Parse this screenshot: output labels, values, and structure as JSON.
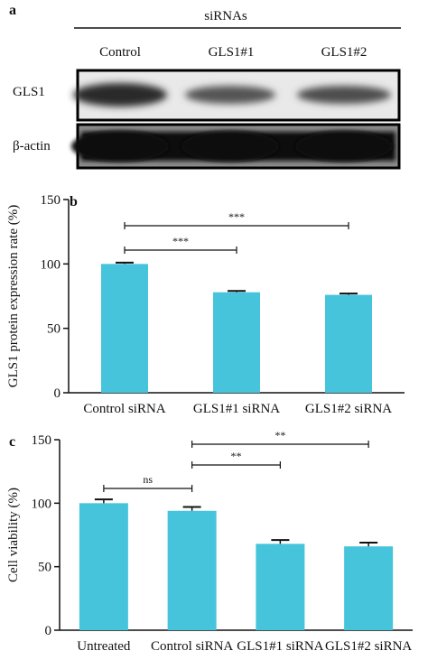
{
  "panel_a": {
    "letter": "a",
    "header": "siRNAs",
    "lanes": [
      "Control",
      "GLS1#1",
      "GLS1#2"
    ],
    "rows": [
      "GLS1",
      "β-actin"
    ]
  },
  "chart_data": [
    {
      "type": "bar",
      "panel": "b",
      "categories": [
        "Control siRNA",
        "GLS1#1 siRNA",
        "GLS1#2 siRNA"
      ],
      "values": [
        100,
        78,
        76
      ],
      "errors": [
        1,
        1,
        1
      ],
      "ylabel": "GLS1 protein expression rate (%)",
      "ylim": [
        0,
        150
      ],
      "yticks": [
        "0",
        "50",
        "100",
        "150"
      ],
      "bar_color": "#45c4dc",
      "significance": [
        {
          "from": 0,
          "to": 1,
          "label": "***"
        },
        {
          "from": 0,
          "to": 2,
          "label": "***"
        }
      ]
    },
    {
      "type": "bar",
      "panel": "c",
      "categories": [
        "Untreated",
        "Control siRNA",
        "GLS1#1 siRNA",
        "GLS1#2 siRNA"
      ],
      "values": [
        100,
        94,
        68,
        66
      ],
      "errors": [
        3,
        3,
        3,
        3
      ],
      "ylabel": "Cell viability (%)",
      "ylim": [
        0,
        150
      ],
      "yticks": [
        "0",
        "50",
        "100",
        "150"
      ],
      "bar_color": "#45c4dc",
      "significance": [
        {
          "from": 0,
          "to": 1,
          "label": "ns"
        },
        {
          "from": 1,
          "to": 2,
          "label": "**"
        },
        {
          "from": 1,
          "to": 3,
          "label": "**"
        }
      ]
    }
  ]
}
